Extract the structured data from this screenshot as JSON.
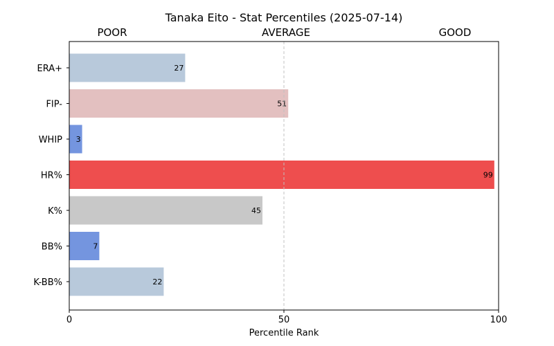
{
  "chart_data": {
    "type": "bar",
    "orientation": "horizontal",
    "title": "Tanaka Eito - Stat Percentiles (2025-07-14)",
    "xlabel": "Percentile Rank",
    "ylabel": "",
    "xlim": [
      0,
      100
    ],
    "xticks": [
      0,
      50,
      100
    ],
    "reference_line": {
      "x": 50,
      "style": "dashed"
    },
    "zone_labels": [
      "POOR",
      "AVERAGE",
      "GOOD"
    ],
    "categories": [
      "ERA+",
      "FIP-",
      "WHIP",
      "HR%",
      "K%",
      "BB%",
      "K-BB%"
    ],
    "values": [
      27,
      51,
      3,
      99,
      45,
      7,
      22
    ],
    "bar_colors": [
      "#b8c9db",
      "#e3c0c0",
      "#7495df",
      "#ee4e4e",
      "#c8c8c8",
      "#7495df",
      "#b8c9db"
    ],
    "legend": "none",
    "grid": false
  }
}
